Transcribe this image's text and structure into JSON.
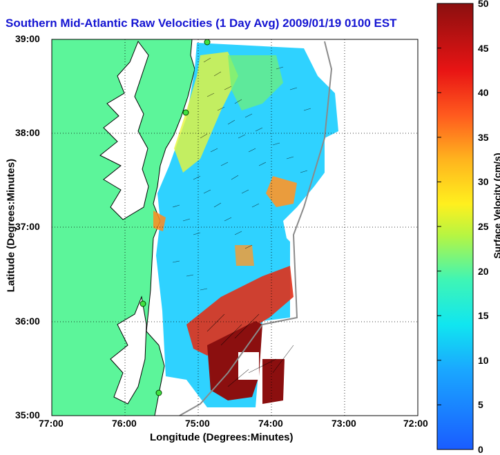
{
  "title": "Southern Mid-Atlantic Raw Velocities (1 Day Avg) 2009/01/19 0100 EST",
  "xlabel": "Longitude (Degrees:Minutes)",
  "ylabel": "Latitude (Degrees:Minutes)",
  "colorbar_label": "Surface Velocity (cm/s)",
  "x_ticks": [
    "77:00",
    "76:00",
    "75:00",
    "74:00",
    "73:00",
    "72:00"
  ],
  "y_ticks": [
    "39:00",
    "38:00",
    "37:00",
    "36:00",
    "35:00"
  ],
  "colorbar_ticks": [
    "0",
    "5",
    "10",
    "15",
    "20",
    "25",
    "30",
    "35",
    "40",
    "45",
    "50"
  ],
  "colors": {
    "land": "#5cf59a",
    "water": "#ffffff",
    "title": "#1414d2"
  }
}
